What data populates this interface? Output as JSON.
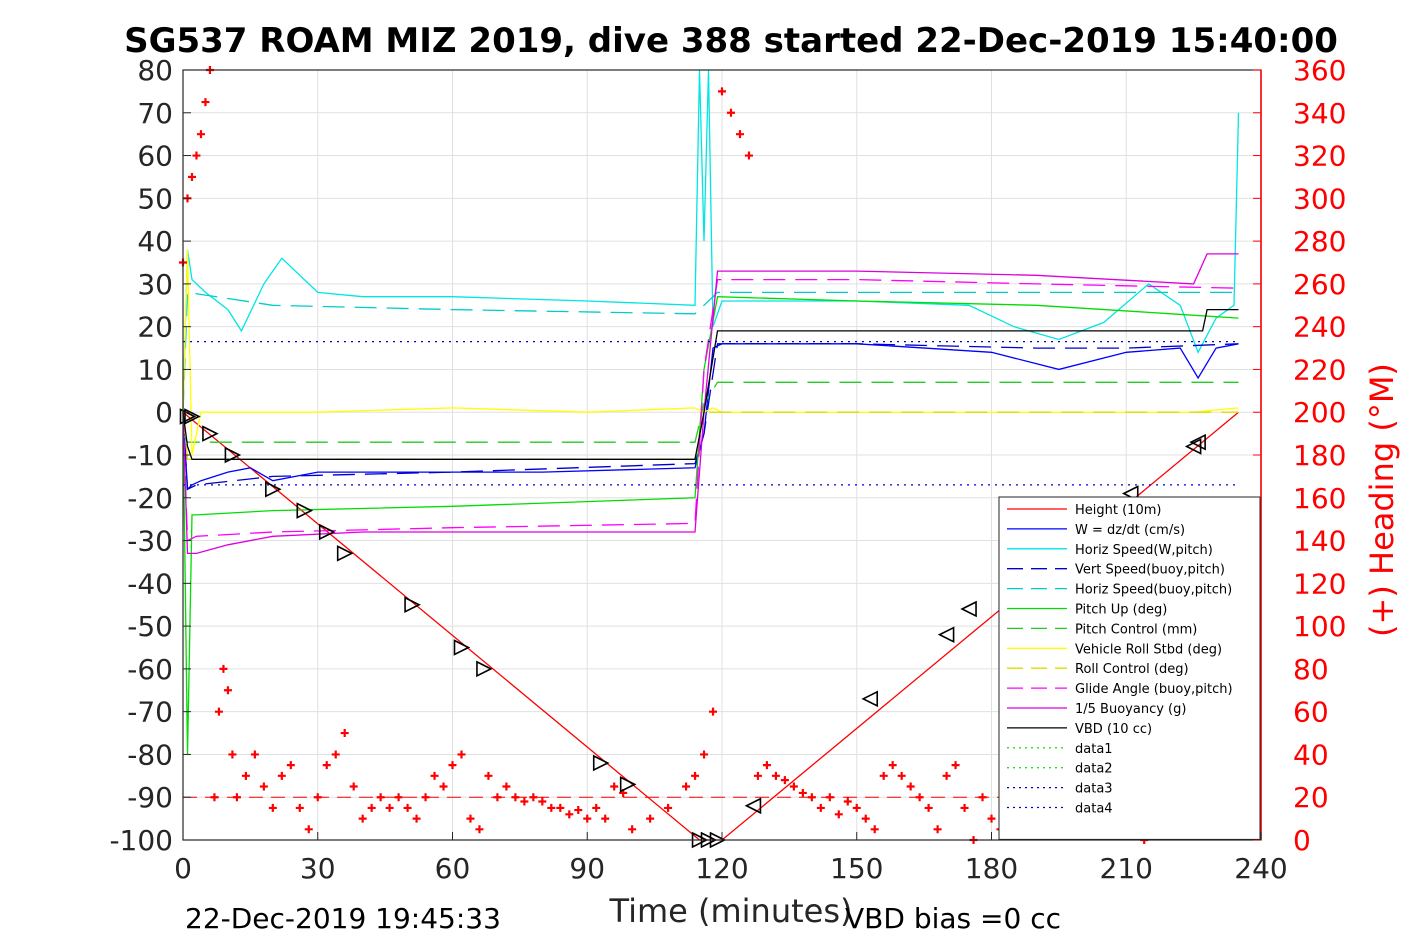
{
  "chart_data": {
    "type": "line",
    "title": "SG537 ROAM MIZ 2019, dive 388 started 22-Dec-2019 15:40:00",
    "xlabel": "Time (minutes)",
    "ylabel": "",
    "y2label": "(+) Heading (°M)",
    "xlim": [
      0,
      240
    ],
    "ylim": [
      -100,
      80
    ],
    "y2lim": [
      0,
      360
    ],
    "xticks": [
      "0",
      "30",
      "60",
      "90",
      "120",
      "150",
      "180",
      "210",
      "240"
    ],
    "yticks": [
      "80",
      "70",
      "60",
      "50",
      "40",
      "30",
      "20",
      "10",
      "0",
      "-10",
      "-20",
      "-30",
      "-40",
      "-50",
      "-60",
      "-70",
      "-80",
      "-90",
      "-100"
    ],
    "y2ticks": [
      "360",
      "340",
      "320",
      "300",
      "280",
      "260",
      "240",
      "220",
      "200",
      "180",
      "160",
      "140",
      "120",
      "100",
      "80",
      "60",
      "40",
      "20",
      "0"
    ],
    "grid": true,
    "legend_position": "lower-right",
    "footer_left": "22-Dec-2019 19:45:33",
    "footer_right": "VBD bias =0 cc",
    "series": [
      {
        "name": "Height (10m)",
        "color": "#ff0000",
        "style": "solid",
        "x": [
          0,
          115,
          120,
          235
        ],
        "y": [
          0,
          -100,
          -100,
          0
        ]
      },
      {
        "name": "W = dz/dt (cm/s)",
        "color": "#0000ff",
        "style": "solid",
        "x": [
          0,
          1,
          2,
          4,
          10,
          15,
          20,
          30,
          50,
          80,
          114,
          116,
          118,
          120,
          150,
          180,
          195,
          210,
          222,
          226,
          230,
          235
        ],
        "y": [
          0,
          -18,
          -17,
          -16,
          -14,
          -13,
          -16,
          -14,
          -14,
          -14,
          -13,
          -5,
          15,
          16,
          16,
          14,
          10,
          14,
          15,
          8,
          15,
          16
        ]
      },
      {
        "name": "Horiz Speed(W,pitch)",
        "color": "#00e5e5",
        "style": "solid",
        "x": [
          0,
          1,
          2,
          5,
          10,
          13,
          18,
          22,
          30,
          40,
          60,
          90,
          114,
          115,
          116,
          117,
          118,
          120,
          150,
          175,
          185,
          195,
          205,
          215,
          222,
          226,
          230,
          234,
          235
        ],
        "y": [
          0,
          38,
          31,
          28,
          24,
          19,
          30,
          36,
          28,
          27,
          27,
          26,
          25,
          80,
          40,
          80,
          20,
          26,
          26,
          25,
          20,
          17,
          21,
          30,
          25,
          14,
          22,
          25,
          70
        ]
      },
      {
        "name": "Vert Speed(buoy,pitch)",
        "color": "#0000cc",
        "style": "dash",
        "x": [
          0,
          1,
          3,
          20,
          60,
          114,
          116,
          119,
          150,
          190,
          210,
          235
        ],
        "y": [
          0,
          -18,
          -17,
          -15,
          -14,
          -12,
          -5,
          16,
          16,
          15,
          15,
          16
        ]
      },
      {
        "name": "Horiz Speed(buoy,pitch)",
        "color": "#00cccc",
        "style": "dash",
        "x": [
          0,
          1,
          20,
          60,
          114,
          116,
          119,
          150,
          190,
          235
        ],
        "y": [
          0,
          28,
          25,
          24,
          23,
          25,
          28,
          28,
          28,
          28
        ]
      },
      {
        "name": "Pitch Up (deg)",
        "color": "#00dd00",
        "style": "solid",
        "x": [
          0,
          1,
          2,
          3,
          20,
          60,
          114,
          116,
          119,
          150,
          190,
          220,
          235
        ],
        "y": [
          0,
          -80,
          -24,
          -24,
          -23,
          -22,
          -20,
          10,
          27,
          26,
          25,
          23,
          22
        ]
      },
      {
        "name": "Pitch Control (mm)",
        "color": "#22cc22",
        "style": "dash",
        "x": [
          0,
          1,
          114,
          116,
          119,
          235
        ],
        "y": [
          -5,
          -7,
          -7,
          2,
          7,
          7
        ]
      },
      {
        "name": "Vehicle Roll Stbd (deg)",
        "color": "#ffff00",
        "style": "solid",
        "x": [
          0,
          1,
          2,
          4,
          12,
          30,
          60,
          90,
          114,
          116,
          118,
          120,
          150,
          180,
          210,
          225,
          235
        ],
        "y": [
          0,
          38,
          -10,
          0,
          0,
          0,
          1,
          0,
          1,
          0,
          1,
          0,
          0,
          0,
          0,
          0,
          1
        ]
      },
      {
        "name": "Roll Control (deg)",
        "color": "#dddd00",
        "style": "dash",
        "x": [
          0,
          1,
          114,
          116,
          235
        ],
        "y": [
          0,
          -11,
          -11,
          0,
          0
        ]
      },
      {
        "name": "Glide Angle (buoy,pitch)",
        "color": "#ff00ff",
        "style": "dash",
        "x": [
          0,
          1,
          3,
          20,
          60,
          114,
          116,
          119,
          150,
          190,
          235
        ],
        "y": [
          0,
          -30,
          -29,
          -28,
          -27,
          -26,
          10,
          31,
          31,
          30,
          29
        ]
      },
      {
        "name": "1/5 Buoyancy (g)",
        "color": "#dd00dd",
        "style": "solid",
        "x": [
          0,
          1,
          3,
          10,
          20,
          40,
          80,
          114,
          116,
          119,
          150,
          190,
          225,
          228,
          235
        ],
        "y": [
          0,
          -33,
          -33,
          -31,
          -29,
          -28,
          -28,
          -28,
          0,
          33,
          33,
          32,
          30,
          37,
          37
        ]
      },
      {
        "name": "VBD (10 cc)",
        "color": "#000000",
        "style": "solid",
        "x": [
          0,
          1,
          2,
          114,
          116,
          119,
          227,
          228,
          235
        ],
        "y": [
          0,
          -8,
          -11,
          -11,
          0,
          19,
          19,
          24,
          24
        ]
      },
      {
        "name": "data1",
        "color": "#22dd22",
        "style": "dot",
        "x": [
          0,
          235
        ],
        "y": [
          null,
          null
        ]
      },
      {
        "name": "data2",
        "color": "#22dd22",
        "style": "dot",
        "x": [
          0,
          235
        ],
        "y": [
          null,
          null
        ]
      },
      {
        "name": "data3",
        "color": "#0000cc",
        "style": "dot",
        "x": [
          0,
          235
        ],
        "y": [
          16.5,
          16.5
        ]
      },
      {
        "name": "data4",
        "color": "#0000cc",
        "style": "dot",
        "x": [
          0,
          235
        ],
        "y": [
          -17,
          -17
        ]
      }
    ],
    "heading_series": {
      "color": "#ff0000",
      "marker": "+",
      "reference_line": 20,
      "x": [
        0,
        1,
        2,
        3,
        4,
        5,
        6,
        7,
        8,
        9,
        10,
        11,
        12,
        14,
        16,
        18,
        20,
        22,
        24,
        26,
        28,
        30,
        32,
        34,
        36,
        38,
        40,
        42,
        44,
        46,
        48,
        50,
        52,
        54,
        56,
        58,
        60,
        62,
        64,
        66,
        68,
        70,
        72,
        74,
        76,
        78,
        80,
        82,
        84,
        86,
        88,
        90,
        92,
        94,
        96,
        98,
        100,
        104,
        108,
        112,
        114,
        116,
        118,
        120,
        122,
        124,
        126,
        128,
        130,
        132,
        134,
        136,
        138,
        140,
        142,
        144,
        146,
        148,
        150,
        152,
        154,
        156,
        158,
        160,
        162,
        164,
        166,
        168,
        170,
        172,
        174,
        176,
        178,
        180,
        182,
        184,
        186,
        188,
        190,
        192,
        194,
        196,
        198,
        200,
        202,
        204,
        206,
        208,
        210,
        212,
        214,
        216,
        218,
        220,
        222,
        224,
        226,
        228,
        230,
        232,
        234,
        235
      ],
      "y": [
        270,
        300,
        310,
        320,
        330,
        345,
        360,
        20,
        60,
        80,
        70,
        40,
        20,
        30,
        40,
        25,
        15,
        30,
        35,
        15,
        5,
        20,
        35,
        40,
        50,
        25,
        10,
        15,
        20,
        15,
        20,
        15,
        10,
        20,
        30,
        25,
        35,
        40,
        10,
        5,
        30,
        20,
        25,
        20,
        18,
        20,
        18,
        15,
        15,
        12,
        14,
        10,
        15,
        10,
        25,
        22,
        5,
        10,
        15,
        25,
        30,
        40,
        60,
        350,
        340,
        330,
        320,
        30,
        35,
        30,
        28,
        25,
        22,
        20,
        15,
        20,
        12,
        18,
        15,
        10,
        5,
        30,
        35,
        30,
        25,
        20,
        15,
        5,
        30,
        35,
        15,
        0,
        20,
        10,
        5,
        15,
        10,
        5,
        10,
        20,
        5,
        10,
        15,
        20,
        5,
        30,
        20,
        10,
        5,
        15,
        0,
        5,
        10,
        5,
        10,
        15,
        5,
        10,
        15,
        10,
        5,
        20
      ]
    },
    "waypoints_down": {
      "x": [
        1,
        2,
        6,
        11,
        20,
        27,
        32,
        36,
        51,
        62,
        67,
        93,
        99,
        115,
        117,
        119
      ],
      "y": [
        -1,
        -1,
        -5,
        -10,
        -18,
        -23,
        -28,
        -33,
        -45,
        -55,
        -60,
        -82,
        -87,
        -100,
        -100,
        -100
      ]
    },
    "waypoints_up": {
      "x": [
        127,
        153,
        170,
        175,
        211,
        225,
        226
      ],
      "y": [
        -92,
        -67,
        -52,
        -46,
        -19,
        -8,
        -7
      ]
    }
  }
}
